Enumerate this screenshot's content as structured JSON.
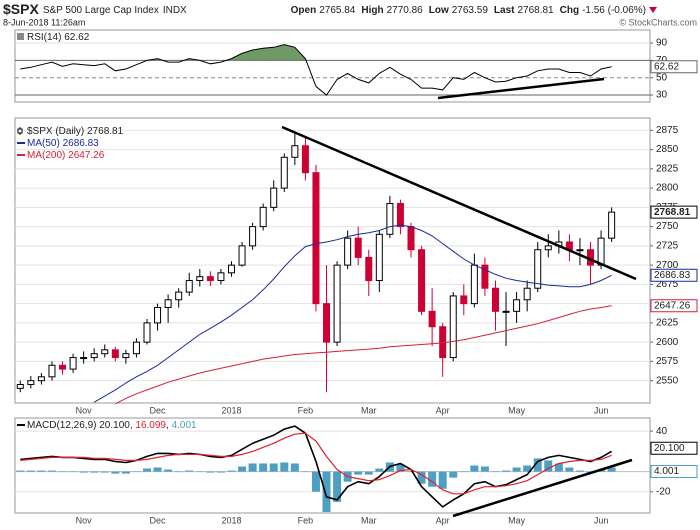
{
  "header": {
    "symbol": "$SPX",
    "name": "S&P 500 Large Cap Index",
    "exchange": "INDX",
    "date": "8-Jun-2018 11:26am",
    "credit": "© StockCharts.com",
    "quote": [
      {
        "label": "Open",
        "value": 2765.84
      },
      {
        "label": "High",
        "value": 2770.86
      },
      {
        "label": "Low",
        "value": 2763.59
      },
      {
        "label": "Last",
        "value": 2768.81
      },
      {
        "label": "Chg",
        "value": "-1.56 (-0.06%)"
      }
    ]
  },
  "chart_data": [
    {
      "type": "line",
      "ylim": [
        22,
        105
      ],
      "yticks": [
        30,
        50,
        70,
        90
      ],
      "overbought": 70,
      "oversold": 30,
      "fill_color": "#5f8f55",
      "series": [
        {
          "name": "RSI(14)",
          "color": "#000000",
          "values": [
            60,
            62,
            65,
            68,
            63,
            66,
            65,
            64,
            66,
            58,
            60,
            65,
            70,
            72,
            68,
            68,
            72,
            70,
            66,
            68,
            72,
            78,
            82,
            84,
            85,
            88,
            85,
            72,
            40,
            30,
            48,
            55,
            48,
            44,
            55,
            62,
            54,
            48,
            38,
            38,
            36,
            50,
            48,
            56,
            50,
            45,
            46,
            50,
            52,
            58,
            60,
            60,
            56,
            56,
            52,
            60,
            62.62
          ]
        }
      ]
    },
    {
      "type": "candlestick",
      "title": "$SPX (Daily)",
      "grid": true,
      "up_color": "#000000",
      "down_color": "#cc0033",
      "categories": [
        null,
        null,
        null,
        null,
        null,
        null,
        "Nov",
        null,
        null,
        null,
        null,
        null,
        null,
        "Dec",
        null,
        null,
        null,
        null,
        null,
        null,
        "2018",
        null,
        null,
        null,
        null,
        null,
        null,
        "Feb",
        null,
        null,
        null,
        null,
        null,
        "Mar",
        null,
        null,
        null,
        null,
        null,
        null,
        "Apr",
        null,
        null,
        null,
        null,
        null,
        null,
        "May",
        null,
        null,
        null,
        null,
        null,
        null,
        null,
        "Jun",
        null
      ],
      "open": [
        2540,
        2545,
        2550,
        2555,
        2570,
        2565,
        2580,
        2580,
        2585,
        2590,
        2580,
        2585,
        2600,
        2625,
        2645,
        2655,
        2665,
        2680,
        2685,
        2680,
        2690,
        2700,
        2725,
        2750,
        2775,
        2800,
        2840,
        2855,
        2820,
        2650,
        2600,
        2700,
        2735,
        2710,
        2680,
        2740,
        2780,
        2750,
        2720,
        2640,
        2620,
        2580,
        2660,
        2650,
        2700,
        2670,
        2640,
        2640,
        2655,
        2670,
        2720,
        2725,
        2730,
        2720,
        2720,
        2700,
        2735
      ],
      "high": [
        2550,
        2556,
        2560,
        2575,
        2575,
        2585,
        2588,
        2592,
        2597,
        2594,
        2590,
        2605,
        2630,
        2650,
        2662,
        2670,
        2690,
        2695,
        2692,
        2695,
        2705,
        2730,
        2755,
        2780,
        2810,
        2845,
        2872,
        2865,
        2830,
        2700,
        2705,
        2745,
        2750,
        2720,
        2745,
        2790,
        2785,
        2755,
        2725,
        2670,
        2625,
        2665,
        2675,
        2715,
        2710,
        2680,
        2665,
        2665,
        2680,
        2730,
        2740,
        2745,
        2740,
        2735,
        2730,
        2745,
        2775
      ],
      "low": [
        2535,
        2540,
        2545,
        2550,
        2558,
        2560,
        2572,
        2575,
        2580,
        2575,
        2572,
        2580,
        2597,
        2615,
        2625,
        2645,
        2660,
        2672,
        2673,
        2675,
        2685,
        2698,
        2720,
        2745,
        2770,
        2795,
        2830,
        2810,
        2640,
        2535,
        2595,
        2695,
        2700,
        2660,
        2665,
        2735,
        2740,
        2710,
        2635,
        2595,
        2555,
        2575,
        2635,
        2645,
        2660,
        2615,
        2595,
        2625,
        2640,
        2665,
        2710,
        2715,
        2705,
        2700,
        2675,
        2695,
        2730
      ],
      "close": [
        2545,
        2550,
        2555,
        2570,
        2565,
        2580,
        2580,
        2585,
        2590,
        2580,
        2585,
        2600,
        2625,
        2645,
        2655,
        2665,
        2680,
        2685,
        2680,
        2690,
        2700,
        2725,
        2750,
        2775,
        2800,
        2840,
        2855,
        2820,
        2650,
        2600,
        2700,
        2735,
        2710,
        2680,
        2740,
        2780,
        2750,
        2720,
        2640,
        2620,
        2580,
        2660,
        2650,
        2700,
        2670,
        2640,
        2640,
        2655,
        2670,
        2720,
        2725,
        2730,
        2720,
        2720,
        2700,
        2735,
        2768.81
      ],
      "ylim": [
        2521,
        2891
      ],
      "yticks": [
        2550,
        2575,
        2600,
        2625,
        2650,
        2675,
        2700,
        2725,
        2750,
        2775,
        2800,
        2825,
        2850,
        2875
      ],
      "series": [
        {
          "name": "MA(50)",
          "color": "#1a2a9c",
          "values": [
            null,
            null,
            null,
            null,
            null,
            null,
            null,
            2522,
            2530,
            2538,
            2547,
            2555,
            2562,
            2570,
            2580,
            2590,
            2600,
            2610,
            2618,
            2626,
            2635,
            2645,
            2655,
            2668,
            2682,
            2698,
            2712,
            2724,
            2728,
            2730,
            2733,
            2737,
            2740,
            2742,
            2745,
            2750,
            2752,
            2750,
            2745,
            2738,
            2728,
            2718,
            2708,
            2700,
            2694,
            2688,
            2683,
            2680,
            2678,
            2676,
            2674,
            2673,
            2672,
            2672,
            2675,
            2680,
            2686.83
          ]
        },
        {
          "name": "MA(200)",
          "color": "#d4203c",
          "values": [
            null,
            null,
            null,
            null,
            null,
            null,
            null,
            null,
            null,
            2520,
            2527,
            2533,
            2538,
            2543,
            2548,
            2552,
            2556,
            2560,
            2563,
            2566,
            2569,
            2572,
            2575,
            2578,
            2580,
            2582,
            2584,
            2585,
            2586,
            2587,
            2588,
            2589,
            2590,
            2591,
            2592,
            2594,
            2595,
            2596,
            2597,
            2598,
            2599,
            2601,
            2603,
            2606,
            2609,
            2612,
            2615,
            2618,
            2621,
            2624,
            2628,
            2632,
            2636,
            2640,
            2643,
            2645,
            2647.26
          ]
        }
      ]
    },
    {
      "type": "macd",
      "title": "MACD(12,26,9)",
      "categories": [
        null,
        null,
        null,
        null,
        null,
        null,
        "Nov",
        null,
        null,
        null,
        null,
        null,
        null,
        "Dec",
        null,
        null,
        null,
        null,
        null,
        null,
        "2018",
        null,
        null,
        null,
        null,
        null,
        null,
        "Feb",
        null,
        null,
        null,
        null,
        null,
        "Mar",
        null,
        null,
        null,
        null,
        null,
        null,
        "Apr",
        null,
        null,
        null,
        null,
        null,
        null,
        "May",
        null,
        null,
        null,
        null,
        null,
        null,
        null,
        "Jun",
        null
      ],
      "ylim": [
        -41,
        53
      ],
      "yticks": [
        -20,
        40
      ],
      "series": [
        {
          "type": "line",
          "color": "#000000",
          "last_label": "20.100",
          "values": [
            12,
            13,
            14,
            15,
            14,
            14,
            13,
            12,
            12,
            10,
            9,
            11,
            15,
            18,
            18,
            17,
            18,
            17,
            15,
            14,
            16,
            22,
            28,
            32,
            36,
            42,
            45,
            38,
            10,
            -25,
            -28,
            -15,
            -10,
            -12,
            -5,
            5,
            8,
            2,
            -15,
            -25,
            -35,
            -28,
            -22,
            -12,
            -10,
            -15,
            -13,
            -8,
            -3,
            10,
            14,
            16,
            14,
            12,
            10,
            14,
            20.1
          ]
        },
        {
          "type": "line",
          "color": "#e0202a",
          "last_label": "16.099",
          "values": [
            11,
            12,
            13,
            14,
            14,
            14,
            14,
            13,
            13,
            12,
            11,
            11,
            12,
            14,
            16,
            17,
            17,
            17,
            16,
            15,
            15,
            17,
            20,
            24,
            28,
            33,
            37,
            38,
            30,
            15,
            2,
            -5,
            -7,
            -9,
            -8,
            -4,
            1,
            2,
            -3,
            -10,
            -18,
            -22,
            -22,
            -18,
            -15,
            -15,
            -14,
            -12,
            -9,
            -3,
            3,
            8,
            10,
            11,
            11,
            12,
            16.099
          ]
        },
        {
          "type": "bar",
          "color": "#4f9fc4",
          "last_label": "4.001",
          "values": [
            1,
            1,
            1,
            1,
            0,
            0,
            -1,
            -1,
            -1,
            -2,
            -2,
            0,
            3,
            4,
            2,
            0,
            1,
            0,
            -1,
            -1,
            1,
            5,
            8,
            8,
            8,
            9,
            8,
            0,
            -20,
            -40,
            -30,
            -10,
            -3,
            -3,
            3,
            9,
            7,
            0,
            -12,
            -15,
            -17,
            -6,
            0,
            6,
            5,
            0,
            1,
            4,
            6,
            13,
            11,
            8,
            4,
            1,
            -1,
            2,
            4.001
          ]
        }
      ]
    }
  ]
}
